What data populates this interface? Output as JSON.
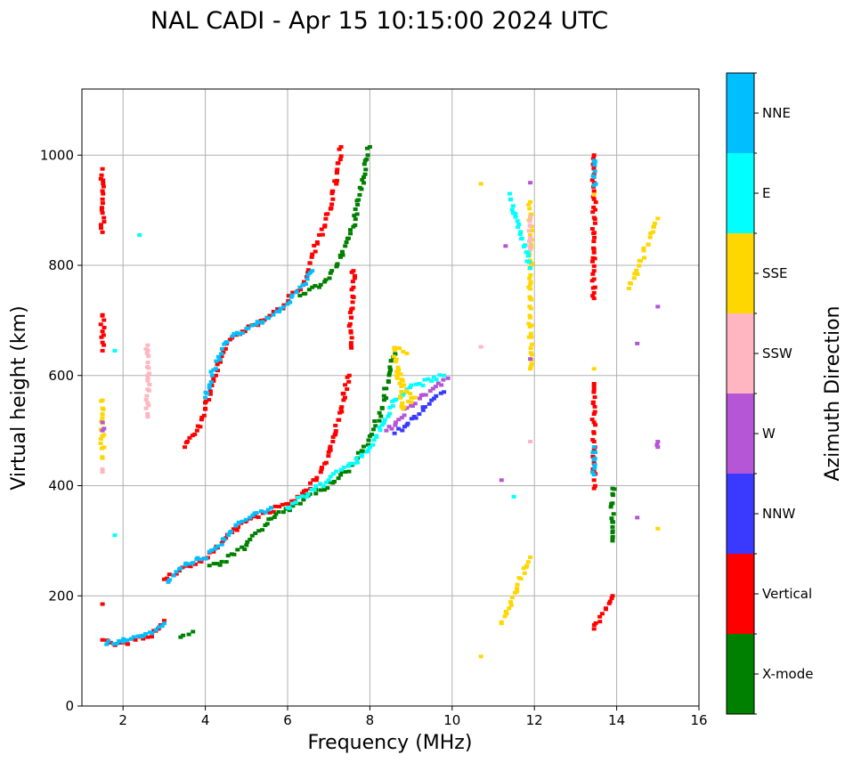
{
  "chart_data": {
    "type": "scatter",
    "title": "NAL CADI - Apr 15 10:15:00 2024 UTC",
    "xlabel": "Frequency (MHz)",
    "ylabel": "Virtual height (km)",
    "xlim": [
      1,
      16
    ],
    "ylim": [
      0,
      1120
    ],
    "xticks": [
      2,
      4,
      6,
      8,
      10,
      12,
      14,
      16
    ],
    "yticks": [
      0,
      200,
      400,
      600,
      800,
      1000
    ],
    "grid": true,
    "colorbar": {
      "label": "Azimuth Direction",
      "categories": [
        {
          "name": "X-mode",
          "color": "#008000"
        },
        {
          "name": "Vertical",
          "color": "#ff0000"
        },
        {
          "name": "NNW",
          "color": "#3a3aff"
        },
        {
          "name": "W",
          "color": "#b456d6"
        },
        {
          "name": "SSW",
          "color": "#ffb6c1"
        },
        {
          "name": "SSE",
          "color": "#ffd700"
        },
        {
          "name": "E",
          "color": "#00ffff"
        },
        {
          "name": "NNE",
          "color": "#00bfff"
        }
      ]
    },
    "traces": [
      {
        "series": "Vertical",
        "points": [
          [
            1.5,
            120
          ],
          [
            1.7,
            115
          ],
          [
            2.0,
            115
          ],
          [
            2.3,
            120
          ],
          [
            2.6,
            125
          ],
          [
            2.85,
            140
          ],
          [
            3.0,
            155
          ]
        ]
      },
      {
        "series": "NNE",
        "points": [
          [
            1.6,
            112
          ],
          [
            1.9,
            118
          ],
          [
            2.2,
            122
          ],
          [
            2.5,
            128
          ],
          [
            2.8,
            138
          ],
          [
            3.0,
            150
          ]
        ]
      },
      {
        "series": "Vertical",
        "points": [
          [
            3.0,
            230
          ],
          [
            3.3,
            240
          ],
          [
            3.6,
            255
          ],
          [
            3.9,
            262
          ],
          [
            4.2,
            280
          ],
          [
            4.5,
            305
          ],
          [
            4.8,
            325
          ],
          [
            5.1,
            340
          ],
          [
            5.4,
            350
          ],
          [
            5.8,
            362
          ],
          [
            6.1,
            372
          ],
          [
            6.4,
            390
          ],
          [
            6.7,
            410
          ],
          [
            6.9,
            440
          ],
          [
            7.1,
            480
          ],
          [
            7.3,
            540
          ],
          [
            7.5,
            600
          ]
        ]
      },
      {
        "series": "NNE",
        "points": [
          [
            3.1,
            225
          ],
          [
            3.4,
            250
          ],
          [
            3.7,
            260
          ],
          [
            4.0,
            268
          ],
          [
            4.3,
            290
          ],
          [
            4.6,
            315
          ],
          [
            4.9,
            335
          ],
          [
            5.2,
            350
          ],
          [
            5.6,
            360
          ]
        ]
      },
      {
        "series": "X-mode",
        "points": [
          [
            4.1,
            255
          ],
          [
            4.4,
            262
          ],
          [
            4.7,
            275
          ],
          [
            5.0,
            292
          ],
          [
            5.3,
            318
          ],
          [
            5.6,
            340
          ],
          [
            5.9,
            352
          ],
          [
            6.2,
            368
          ],
          [
            6.5,
            382
          ],
          [
            6.8,
            392
          ],
          [
            7.1,
            405
          ],
          [
            7.4,
            425
          ],
          [
            7.7,
            450
          ],
          [
            8.0,
            490
          ],
          [
            8.3,
            540
          ],
          [
            8.5,
            610
          ],
          [
            8.6,
            650
          ]
        ]
      },
      {
        "series": "E",
        "points": [
          [
            6.0,
            360
          ],
          [
            6.5,
            385
          ],
          [
            7.0,
            410
          ],
          [
            7.6,
            440
          ],
          [
            8.0,
            470
          ],
          [
            8.3,
            510
          ],
          [
            8.6,
            555
          ],
          [
            8.9,
            575
          ],
          [
            9.2,
            585
          ],
          [
            9.5,
            590
          ],
          [
            9.8,
            600
          ]
        ]
      },
      {
        "series": "W",
        "points": [
          [
            8.4,
            500
          ],
          [
            8.7,
            520
          ],
          [
            9.0,
            545
          ],
          [
            9.3,
            565
          ],
          [
            9.6,
            580
          ],
          [
            9.9,
            595
          ]
        ]
      },
      {
        "series": "NNW",
        "points": [
          [
            8.6,
            495
          ],
          [
            8.9,
            510
          ],
          [
            9.2,
            530
          ],
          [
            9.5,
            555
          ],
          [
            9.8,
            570
          ]
        ]
      },
      {
        "series": "SSE",
        "points": [
          [
            8.7,
            610
          ],
          [
            8.9,
            570
          ],
          [
            9.1,
            560
          ],
          [
            8.8,
            540
          ],
          [
            8.6,
            650
          ],
          [
            8.9,
            640
          ]
        ]
      },
      {
        "series": "Vertical",
        "points": [
          [
            3.5,
            470
          ],
          [
            3.8,
            500
          ],
          [
            4.0,
            540
          ],
          [
            4.2,
            590
          ],
          [
            4.4,
            635
          ],
          [
            4.6,
            665
          ],
          [
            4.9,
            680
          ],
          [
            5.2,
            692
          ],
          [
            5.5,
            705
          ],
          [
            5.8,
            720
          ],
          [
            6.1,
            745
          ],
          [
            6.4,
            770
          ],
          [
            6.6,
            820
          ],
          [
            6.9,
            870
          ],
          [
            7.1,
            920
          ],
          [
            7.2,
            970
          ],
          [
            7.3,
            1015
          ]
        ]
      },
      {
        "series": "NNE",
        "points": [
          [
            4.0,
            560
          ],
          [
            4.2,
            610
          ],
          [
            4.5,
            660
          ],
          [
            5.0,
            685
          ],
          [
            5.5,
            705
          ],
          [
            6.0,
            730
          ],
          [
            6.3,
            760
          ],
          [
            6.6,
            790
          ]
        ]
      },
      {
        "series": "X-mode",
        "points": [
          [
            6.3,
            745
          ],
          [
            6.6,
            760
          ],
          [
            6.9,
            770
          ],
          [
            7.2,
            800
          ],
          [
            7.4,
            835
          ],
          [
            7.6,
            870
          ],
          [
            7.7,
            910
          ],
          [
            7.85,
            960
          ],
          [
            7.95,
            1000
          ],
          [
            8.0,
            1015
          ]
        ]
      },
      {
        "series": "Vertical",
        "points": [
          [
            7.6,
            790
          ],
          [
            7.6,
            760
          ],
          [
            7.55,
            720
          ],
          [
            7.5,
            690
          ],
          [
            7.55,
            650
          ]
        ]
      },
      {
        "series": "Vertical",
        "points": [
          [
            1.5,
            860
          ],
          [
            1.5,
            895
          ],
          [
            1.5,
            920
          ],
          [
            1.5,
            935
          ],
          [
            1.5,
            975
          ],
          [
            1.5,
            710
          ],
          [
            1.5,
            680
          ],
          [
            1.5,
            660
          ],
          [
            1.5,
            645
          ],
          [
            1.5,
            185
          ]
        ]
      },
      {
        "series": "SSE",
        "points": [
          [
            1.5,
            555
          ],
          [
            1.5,
            530
          ],
          [
            1.5,
            490
          ],
          [
            1.5,
            450
          ]
        ]
      },
      {
        "series": "W",
        "points": [
          [
            1.5,
            515
          ],
          [
            1.5,
            500
          ]
        ]
      },
      {
        "series": "SSW",
        "points": [
          [
            1.5,
            430
          ],
          [
            1.5,
            425
          ],
          [
            2.6,
            655
          ],
          [
            2.6,
            600
          ],
          [
            2.6,
            575
          ],
          [
            2.6,
            550
          ],
          [
            2.6,
            525
          ]
        ]
      },
      {
        "series": "Vertical",
        "points": [
          [
            13.45,
            1000
          ],
          [
            13.45,
            980
          ],
          [
            13.45,
            965
          ],
          [
            13.45,
            950
          ],
          [
            13.45,
            935
          ],
          [
            13.45,
            920
          ],
          [
            13.45,
            790
          ],
          [
            13.45,
            775
          ],
          [
            13.45,
            750
          ],
          [
            13.45,
            740
          ],
          [
            13.45,
            585
          ],
          [
            13.45,
            580
          ],
          [
            13.45,
            530
          ],
          [
            13.45,
            515
          ],
          [
            13.45,
            495
          ],
          [
            13.45,
            480
          ],
          [
            13.45,
            465
          ],
          [
            13.45,
            450
          ],
          [
            13.45,
            440
          ],
          [
            13.45,
            425
          ],
          [
            13.45,
            410
          ],
          [
            13.45,
            395
          ],
          [
            13.45,
            140
          ],
          [
            13.9,
            200
          ]
        ]
      },
      {
        "series": "NNE",
        "points": [
          [
            13.45,
            990
          ],
          [
            13.45,
            960
          ],
          [
            13.45,
            945
          ],
          [
            13.45,
            470
          ],
          [
            13.45,
            420
          ]
        ]
      },
      {
        "series": "SSE",
        "points": [
          [
            13.45,
            928
          ],
          [
            13.45,
            612
          ],
          [
            14.3,
            758
          ],
          [
            15.0,
            885
          ],
          [
            15.0,
            322
          ],
          [
            11.9,
            915
          ],
          [
            11.9,
            885
          ],
          [
            11.9,
            855
          ],
          [
            11.9,
            765
          ],
          [
            11.9,
            740
          ],
          [
            11.9,
            705
          ],
          [
            11.9,
            612
          ],
          [
            11.9,
            270
          ],
          [
            11.2,
            150
          ],
          [
            10.7,
            948
          ],
          [
            10.7,
            90
          ]
        ]
      },
      {
        "series": "X-mode",
        "points": [
          [
            13.9,
            395
          ],
          [
            13.9,
            385
          ],
          [
            13.9,
            325
          ],
          [
            13.9,
            315
          ],
          [
            13.9,
            305
          ],
          [
            13.9,
            300
          ],
          [
            3.4,
            125
          ],
          [
            3.6,
            130
          ],
          [
            3.7,
            135
          ]
        ]
      },
      {
        "series": "W",
        "points": [
          [
            14.5,
            658
          ],
          [
            15.0,
            480
          ],
          [
            15.0,
            470
          ],
          [
            11.9,
            950
          ],
          [
            11.9,
            630
          ],
          [
            11.9,
            795
          ],
          [
            14.5,
            342
          ],
          [
            11.2,
            410
          ],
          [
            11.3,
            835
          ],
          [
            15.0,
            725
          ]
        ]
      },
      {
        "series": "SSW",
        "points": [
          [
            11.9,
            888
          ],
          [
            11.9,
            828
          ],
          [
            11.9,
            480
          ],
          [
            10.7,
            652
          ]
        ]
      },
      {
        "series": "E",
        "points": [
          [
            11.9,
            795
          ],
          [
            11.4,
            930
          ],
          [
            11.5,
            380
          ],
          [
            1.8,
            645
          ],
          [
            2.4,
            855
          ],
          [
            1.8,
            310
          ]
        ]
      }
    ]
  }
}
